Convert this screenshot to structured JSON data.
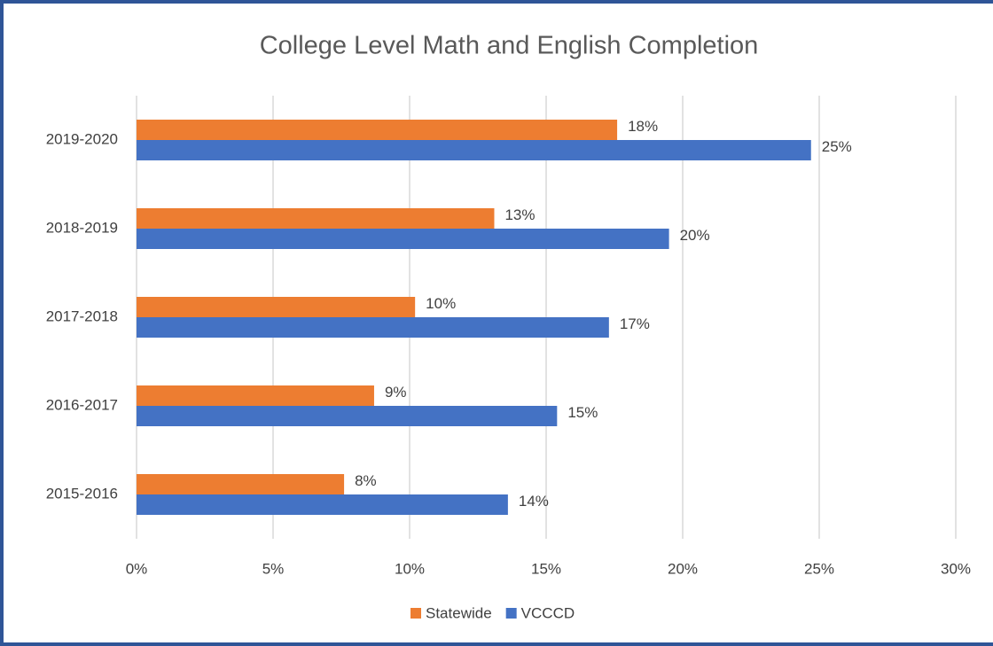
{
  "chart_data": {
    "type": "hbar",
    "title": "College Level Math and English Completion",
    "categories": [
      "2019-2020",
      "2018-2019",
      "2017-2018",
      "2016-2017",
      "2015-2016"
    ],
    "series": [
      {
        "name": "Statewide",
        "color": "#ed7d31",
        "values": [
          17.6,
          13.1,
          10.2,
          8.7,
          7.6
        ],
        "value_labels": [
          "18%",
          "13%",
          "10%",
          "9%",
          "8%"
        ]
      },
      {
        "name": "VCCCD",
        "color": "#4472c4",
        "values": [
          24.7,
          19.5,
          17.3,
          15.4,
          13.6
        ],
        "value_labels": [
          "25%",
          "20%",
          "17%",
          "15%",
          "14%"
        ]
      }
    ],
    "xlim": [
      0,
      30
    ],
    "xticks": [
      {
        "value": 0,
        "label": "0%"
      },
      {
        "value": 5,
        "label": "5%"
      },
      {
        "value": 10,
        "label": "10%"
      },
      {
        "value": 15,
        "label": "15%"
      },
      {
        "value": 20,
        "label": "20%"
      },
      {
        "value": 25,
        "label": "25%"
      },
      {
        "value": 30,
        "label": "30%"
      }
    ],
    "grid": true,
    "legend": "bottom"
  }
}
